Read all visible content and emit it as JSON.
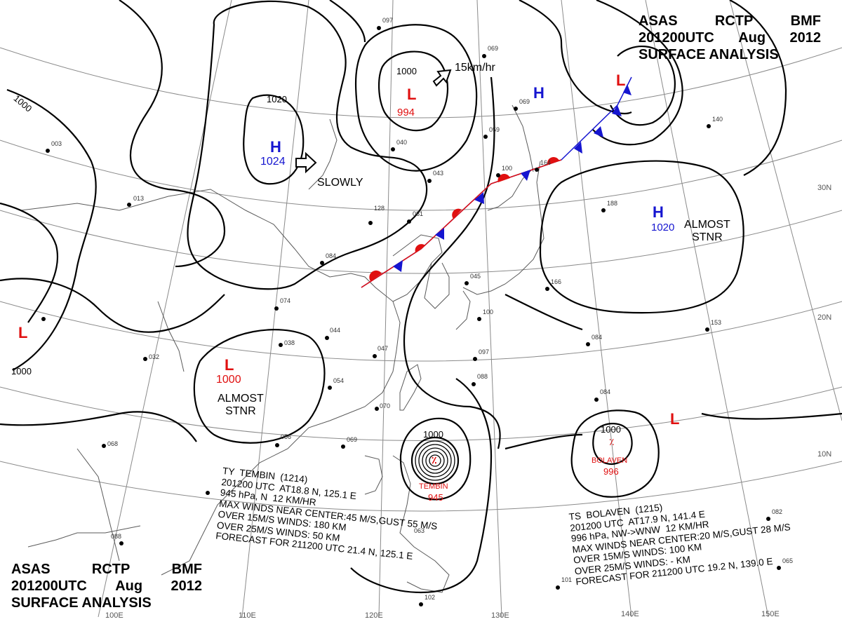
{
  "header_top": {
    "line1_a": "ASAS",
    "line1_b": "RCTP",
    "line1_c": "BMF",
    "line2_a": "201200UTC",
    "line2_b": "Aug",
    "line2_c": "2012",
    "line3": "SURFACE ANALYSIS"
  },
  "header_bottom": {
    "line1_a": "ASAS",
    "line1_b": "RCTP",
    "line1_c": "BMF",
    "line2_a": "201200UTC",
    "line2_b": "Aug",
    "line2_c": "2012",
    "line3": "SURFACE ANALYSIS"
  },
  "colors": {
    "high": "#1515d0",
    "low": "#e01010",
    "isobar": "#000000",
    "grid": "#888888",
    "coast": "#555555"
  },
  "longitudes": [
    "100E",
    "110E",
    "120E",
    "130E",
    "140E",
    "150E"
  ],
  "latitudes": [
    "10N",
    "20N",
    "30N"
  ],
  "isobar_labels": [
    "1000",
    "1020",
    "1000",
    "1000",
    "1000",
    "1000",
    "1000"
  ],
  "pressure_systems": [
    {
      "type": "H",
      "value": "1024",
      "note": "SLOWLY"
    },
    {
      "type": "L",
      "value": "994",
      "note": "15km/hr"
    },
    {
      "type": "H",
      "value": "",
      "note": ""
    },
    {
      "type": "L",
      "value": "",
      "note": ""
    },
    {
      "type": "H",
      "value": "1020",
      "note": "ALMOST STNR"
    },
    {
      "type": "L",
      "value": "",
      "note": ""
    },
    {
      "type": "L",
      "value": "1000",
      "note": "ALMOST STNR"
    },
    {
      "type": "L",
      "value": "",
      "note": ""
    }
  ],
  "almost_stnr_1": [
    "ALMOST",
    "STNR"
  ],
  "almost_stnr_2": [
    "ALMOST",
    "STNR"
  ],
  "tembin": {
    "name": "TEMBIN",
    "pressure": "945",
    "bulletin": [
      "TY  TEMBIN  (1214)",
      "201200 UTC  AT18.8 N, 125.1 E",
      "945 hPa, N  12 KM/HR",
      "MAX WINDS NEAR CENTER:45 M/S,GUST 55 M/S",
      "OVER 15M/S WINDS: 180 KM",
      "OVER 25M/S WINDS: 50 KM",
      "FORECAST FOR 211200 UTC 21.4 N, 125.1 E"
    ]
  },
  "bolaven": {
    "name": "BOLAVEN",
    "pressure": "996",
    "bulletin": [
      "TS  BOLAVEN  (1215)",
      "201200 UTC  AT17.9 N, 141.4 E",
      "996 hPa, NW->WNW  12 KM/HR",
      "MAX WINDS NEAR CENTER:20 M/S,GUST 28 M/S",
      "OVER 15M/S WINDS: 100 KM",
      "OVER 25M/S WINDS: - KM",
      "FORECAST FOR 211200 UTC 19.2 N, 139.0 E"
    ]
  },
  "station_samples": [
    "097",
    "069",
    "043",
    "081",
    "074",
    "084",
    "044",
    "038",
    "047",
    "054",
    "078",
    "070",
    "069",
    "056",
    "045",
    "063",
    "065",
    "102",
    "101",
    "098",
    "084",
    "166",
    "153",
    "188",
    "140",
    "032",
    "013",
    "003",
    "041",
    "026",
    "088",
    "068",
    "059",
    "051",
    "100",
    "122",
    "065",
    "060",
    "128",
    "113",
    "074",
    "107",
    "112",
    "156",
    "022",
    "016",
    "012",
    "021",
    "095",
    "082",
    "040"
  ]
}
